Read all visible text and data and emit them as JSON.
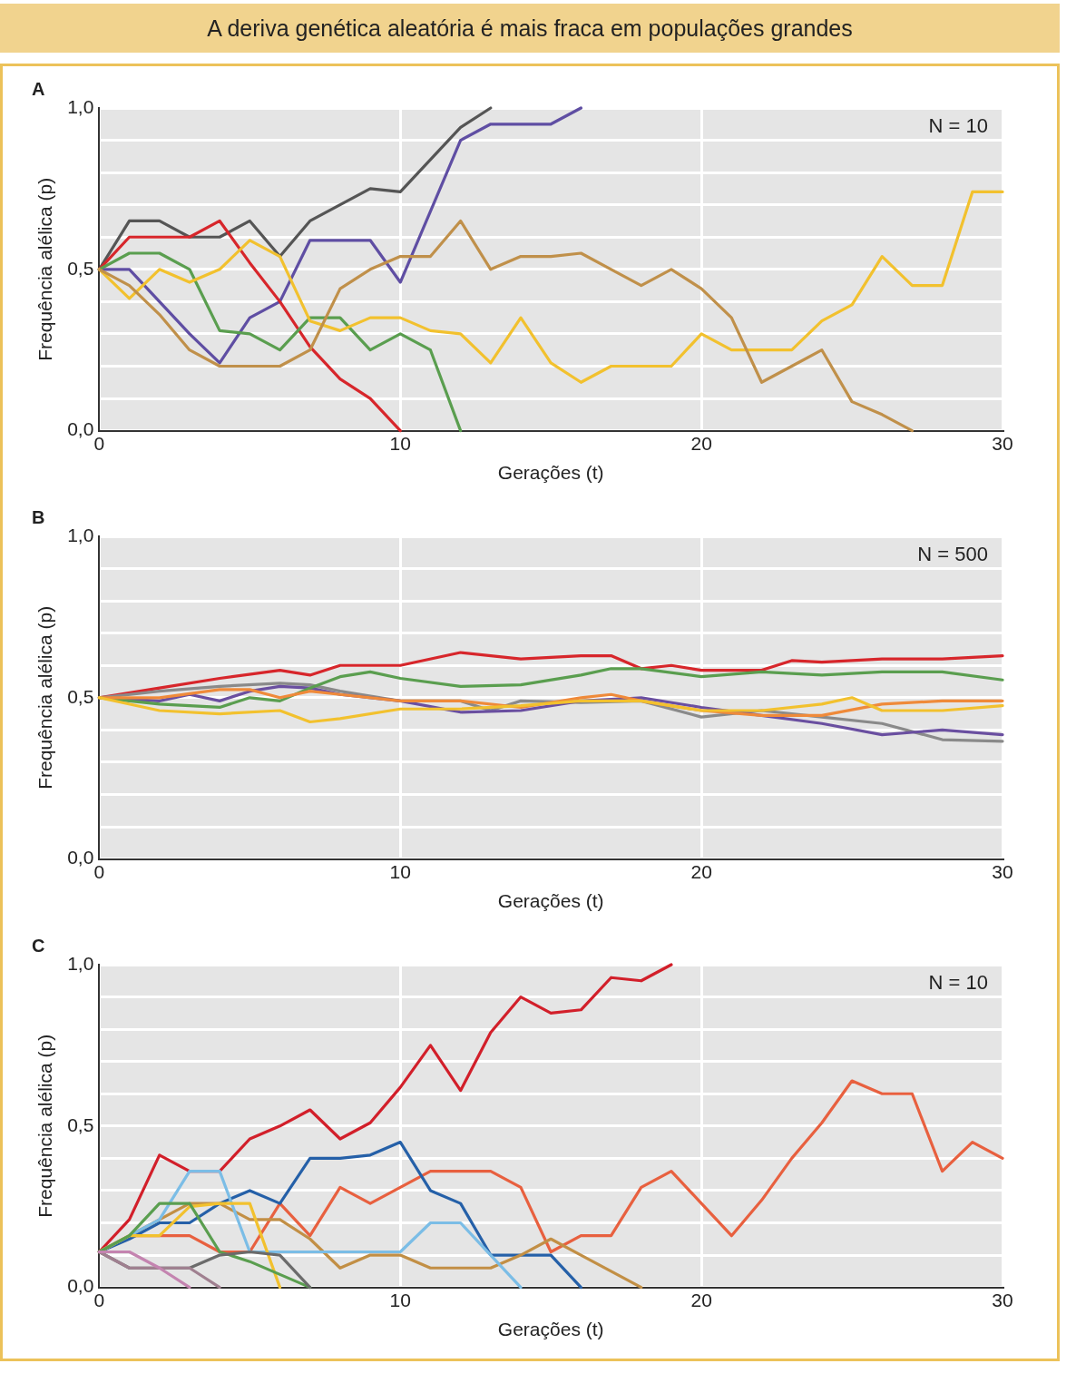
{
  "chart_data": [
    {
      "type": "line",
      "title": "A deriva genética aleatória é mais fraca em populações grandes",
      "subtitle": "A",
      "xlabel": "Gerações (t)",
      "ylabel": "Frequência alélica (p)",
      "annotations": [
        "N = 10"
      ],
      "grid": true,
      "marker": "none",
      "line_style": "solid",
      "xlim": [
        0,
        30
      ],
      "xticks": [
        0,
        10,
        20,
        30
      ],
      "ylim": [
        0,
        1
      ],
      "yticks": [
        {
          "value": 0,
          "label": "0,0"
        },
        {
          "value": 0.1,
          "label": null
        },
        {
          "value": 0.2,
          "label": null
        },
        {
          "value": 0.3,
          "label": null
        },
        {
          "value": 0.4,
          "label": null
        },
        {
          "value": 0.5,
          "label": "0,5"
        },
        {
          "value": 0.6,
          "label": null
        },
        {
          "value": 0.7,
          "label": null
        },
        {
          "value": 0.8,
          "label": null
        },
        {
          "value": 0.9,
          "label": null
        },
        {
          "value": 1,
          "label": "1,0"
        }
      ],
      "series": [
        {
          "color": "#c0904a",
          "x": [
            0,
            1,
            2,
            3,
            4,
            5,
            6,
            7,
            8,
            9,
            10,
            11,
            12,
            13,
            14,
            15,
            16,
            17,
            18,
            19,
            20,
            21,
            22,
            23,
            24,
            25,
            26,
            27
          ],
          "values": [
            0.5,
            0.45,
            0.36,
            0.25,
            0.2,
            0.2,
            0.2,
            0.25,
            0.44,
            0.5,
            0.54,
            0.54,
            0.65,
            0.5,
            0.54,
            0.54,
            0.55,
            0.5,
            0.45,
            0.5,
            0.44,
            0.35,
            0.15,
            0.2,
            0.25,
            0.09,
            0.05,
            0.0
          ]
        },
        {
          "color": "#f2c12e",
          "x": [
            0,
            1,
            2,
            3,
            4,
            5,
            6,
            7,
            8,
            9,
            10,
            11,
            12,
            13,
            14,
            15,
            16,
            17,
            18,
            19,
            20,
            21,
            22,
            23,
            24,
            25,
            26,
            27,
            28,
            29,
            30
          ],
          "values": [
            0.5,
            0.41,
            0.5,
            0.46,
            0.5,
            0.59,
            0.54,
            0.34,
            0.31,
            0.35,
            0.35,
            0.31,
            0.3,
            0.21,
            0.35,
            0.21,
            0.15,
            0.2,
            0.2,
            0.2,
            0.3,
            0.25,
            0.25,
            0.25,
            0.34,
            0.39,
            0.54,
            0.45,
            0.45,
            0.74,
            0.74
          ]
        },
        {
          "color": "#5a9e4f",
          "x": [
            0,
            1,
            2,
            3,
            4,
            5,
            6,
            7,
            8,
            9,
            10,
            11,
            12
          ],
          "values": [
            0.5,
            0.55,
            0.55,
            0.5,
            0.31,
            0.3,
            0.25,
            0.35,
            0.35,
            0.25,
            0.3,
            0.25,
            0.0
          ]
        },
        {
          "color": "#d7262b",
          "x": [
            0,
            1,
            2,
            3,
            4,
            5,
            6,
            7,
            8,
            9,
            10
          ],
          "values": [
            0.5,
            0.6,
            0.6,
            0.6,
            0.65,
            0.52,
            0.4,
            0.26,
            0.16,
            0.1,
            0.0
          ]
        },
        {
          "color": "#5f4ea3",
          "x": [
            0,
            1,
            2,
            3,
            4,
            5,
            6,
            7,
            8,
            9,
            10,
            11,
            12,
            13,
            14,
            15,
            16
          ],
          "values": [
            0.5,
            0.5,
            0.4,
            0.3,
            0.21,
            0.35,
            0.4,
            0.59,
            0.59,
            0.59,
            0.46,
            0.68,
            0.9,
            0.95,
            0.95,
            0.95,
            1.0
          ]
        },
        {
          "color": "#555555",
          "x": [
            0,
            1,
            2,
            3,
            4,
            5,
            6,
            7,
            8,
            9,
            10,
            11,
            12,
            13
          ],
          "values": [
            0.5,
            0.65,
            0.65,
            0.6,
            0.6,
            0.65,
            0.54,
            0.65,
            0.7,
            0.75,
            0.74,
            0.84,
            0.94,
            1.0
          ]
        }
      ]
    },
    {
      "type": "line",
      "subtitle": "B",
      "xlabel": "Gerações (t)",
      "ylabel": "Frequência alélica (p)",
      "annotations": [
        "N = 500"
      ],
      "grid": true,
      "marker": "none",
      "line_style": "solid",
      "xlim": [
        0,
        30
      ],
      "xticks": [
        0,
        10,
        20,
        30
      ],
      "ylim": [
        0,
        1
      ],
      "yticks": [
        {
          "value": 0,
          "label": "0,0"
        },
        {
          "value": 0.1,
          "label": null
        },
        {
          "value": 0.2,
          "label": null
        },
        {
          "value": 0.3,
          "label": null
        },
        {
          "value": 0.4,
          "label": null
        },
        {
          "value": 0.5,
          "label": "0,5"
        },
        {
          "value": 0.6,
          "label": null
        },
        {
          "value": 0.7,
          "label": null
        },
        {
          "value": 0.8,
          "label": null
        },
        {
          "value": 0.9,
          "label": null
        },
        {
          "value": 1,
          "label": "1,0"
        }
      ],
      "series": [
        {
          "color": "#f2c12e",
          "x": [
            0,
            2,
            4,
            6,
            7,
            8,
            10,
            12,
            14,
            16,
            18,
            20,
            22,
            24,
            25,
            26,
            28,
            30
          ],
          "values": [
            0.5,
            0.46,
            0.45,
            0.46,
            0.425,
            0.435,
            0.465,
            0.465,
            0.475,
            0.49,
            0.49,
            0.46,
            0.46,
            0.48,
            0.5,
            0.46,
            0.46,
            0.475
          ]
        },
        {
          "color": "#ef8a3a",
          "x": [
            0,
            2,
            4,
            5,
            6,
            7,
            8,
            10,
            12,
            14,
            16,
            17,
            18,
            20,
            22,
            24,
            26,
            28,
            30
          ],
          "values": [
            0.5,
            0.5,
            0.525,
            0.525,
            0.5,
            0.52,
            0.51,
            0.49,
            0.49,
            0.47,
            0.5,
            0.51,
            0.49,
            0.46,
            0.445,
            0.445,
            0.48,
            0.49,
            0.49
          ]
        },
        {
          "color": "#5a9e4f",
          "x": [
            0,
            2,
            4,
            5,
            6,
            7,
            8,
            9,
            10,
            12,
            14,
            16,
            17,
            18,
            20,
            22,
            24,
            26,
            28,
            30
          ],
          "values": [
            0.5,
            0.48,
            0.47,
            0.5,
            0.49,
            0.53,
            0.565,
            0.58,
            0.56,
            0.535,
            0.54,
            0.57,
            0.59,
            0.59,
            0.565,
            0.58,
            0.57,
            0.58,
            0.58,
            0.555
          ]
        },
        {
          "color": "#6a4fa0",
          "x": [
            0,
            2,
            3,
            4,
            5,
            6,
            7,
            8,
            10,
            12,
            14,
            16,
            18,
            20,
            22,
            24,
            26,
            28,
            30
          ],
          "values": [
            0.5,
            0.49,
            0.51,
            0.49,
            0.52,
            0.535,
            0.53,
            0.51,
            0.49,
            0.455,
            0.46,
            0.49,
            0.5,
            0.47,
            0.445,
            0.42,
            0.385,
            0.4,
            0.385
          ]
        },
        {
          "color": "#8a8a8a",
          "x": [
            0,
            2,
            4,
            6,
            7,
            8,
            10,
            12,
            13,
            14,
            16,
            18,
            20,
            22,
            24,
            26,
            28,
            30
          ],
          "values": [
            0.5,
            0.52,
            0.535,
            0.545,
            0.54,
            0.52,
            0.49,
            0.49,
            0.46,
            0.49,
            0.485,
            0.49,
            0.44,
            0.46,
            0.44,
            0.42,
            0.37,
            0.365
          ]
        },
        {
          "color": "#d7262b",
          "x": [
            0,
            2,
            4,
            6,
            7,
            8,
            10,
            12,
            14,
            16,
            17,
            18,
            19,
            20,
            22,
            23,
            24,
            26,
            28,
            30
          ],
          "values": [
            0.5,
            0.53,
            0.56,
            0.585,
            0.57,
            0.6,
            0.6,
            0.64,
            0.62,
            0.63,
            0.63,
            0.59,
            0.6,
            0.585,
            0.585,
            0.615,
            0.61,
            0.62,
            0.62,
            0.63
          ]
        }
      ]
    },
    {
      "type": "line",
      "subtitle": "C",
      "xlabel": "Gerações (t)",
      "ylabel": "Frequência alélica (p)",
      "annotations": [
        "N = 10"
      ],
      "grid": true,
      "marker": "none",
      "line_style": "solid",
      "xlim": [
        0,
        30
      ],
      "xticks": [
        0,
        10,
        20,
        30
      ],
      "ylim": [
        0,
        1
      ],
      "yticks": [
        {
          "value": 0,
          "label": "0,0"
        },
        {
          "value": 0.1,
          "label": null
        },
        {
          "value": 0.2,
          "label": null
        },
        {
          "value": 0.3,
          "label": null
        },
        {
          "value": 0.4,
          "label": null
        },
        {
          "value": 0.5,
          "label": "0,5"
        },
        {
          "value": 0.6,
          "label": null
        },
        {
          "value": 0.7,
          "label": null
        },
        {
          "value": 0.8,
          "label": null
        },
        {
          "value": 0.9,
          "label": null
        },
        {
          "value": 1,
          "label": "1,0"
        }
      ],
      "series": [
        {
          "color": "#c484b0",
          "x": [
            0,
            1,
            2,
            3
          ],
          "values": [
            0.11,
            0.11,
            0.06,
            0.0
          ]
        },
        {
          "color": "#a08090",
          "x": [
            0,
            1,
            2,
            3,
            4
          ],
          "values": [
            0.11,
            0.06,
            0.06,
            0.06,
            0.0
          ]
        },
        {
          "color": "#6b6b6b",
          "x": [
            0,
            1,
            2,
            3,
            4,
            5,
            6,
            7
          ],
          "values": [
            0.11,
            0.06,
            0.06,
            0.06,
            0.1,
            0.11,
            0.1,
            0.0
          ]
        },
        {
          "color": "#5a9e4f",
          "x": [
            0,
            1,
            2,
            3,
            4,
            5,
            6,
            7
          ],
          "values": [
            0.11,
            0.16,
            0.26,
            0.26,
            0.11,
            0.08,
            0.04,
            0.0
          ]
        },
        {
          "color": "#f2c12e",
          "x": [
            0,
            1,
            2,
            3,
            4,
            5,
            6
          ],
          "values": [
            0.11,
            0.16,
            0.16,
            0.25,
            0.26,
            0.26,
            0.0
          ]
        },
        {
          "color": "#7bbde6",
          "x": [
            0,
            1,
            2,
            3,
            4,
            5,
            6,
            7,
            8,
            9,
            10,
            11,
            12,
            13,
            14
          ],
          "values": [
            0.11,
            0.16,
            0.21,
            0.36,
            0.36,
            0.11,
            0.11,
            0.11,
            0.11,
            0.11,
            0.11,
            0.2,
            0.2,
            0.1,
            0.0
          ]
        },
        {
          "color": "#c28f45",
          "x": [
            0,
            1,
            2,
            3,
            4,
            5,
            6,
            7,
            8,
            9,
            10,
            11,
            12,
            13,
            14,
            15,
            16,
            17,
            18
          ],
          "values": [
            0.11,
            0.16,
            0.21,
            0.26,
            0.26,
            0.21,
            0.21,
            0.15,
            0.06,
            0.1,
            0.1,
            0.06,
            0.06,
            0.06,
            0.1,
            0.15,
            0.1,
            0.05,
            0.0
          ]
        },
        {
          "color": "#2560a8",
          "x": [
            0,
            1,
            2,
            3,
            4,
            5,
            6,
            7,
            8,
            9,
            10,
            11,
            12,
            13,
            14,
            15,
            16
          ],
          "values": [
            0.11,
            0.15,
            0.2,
            0.2,
            0.26,
            0.3,
            0.26,
            0.4,
            0.4,
            0.41,
            0.45,
            0.3,
            0.26,
            0.1,
            0.1,
            0.1,
            0.0
          ]
        },
        {
          "color": "#e8603f",
          "x": [
            0,
            1,
            2,
            3,
            4,
            5,
            6,
            7,
            8,
            9,
            10,
            11,
            12,
            13,
            14,
            15,
            16,
            17,
            18,
            19,
            20,
            21,
            22,
            23,
            24,
            25,
            26,
            27,
            28,
            29,
            30
          ],
          "values": [
            0.11,
            0.16,
            0.16,
            0.16,
            0.11,
            0.11,
            0.26,
            0.16,
            0.31,
            0.26,
            0.31,
            0.36,
            0.36,
            0.36,
            0.31,
            0.11,
            0.16,
            0.16,
            0.31,
            0.36,
            0.26,
            0.16,
            0.27,
            0.4,
            0.51,
            0.64,
            0.6,
            0.6,
            0.36,
            0.45,
            0.4
          ]
        },
        {
          "color": "#d21f2a",
          "x": [
            0,
            1,
            2,
            3,
            4,
            5,
            6,
            7,
            8,
            9,
            10,
            11,
            12,
            13,
            14,
            15,
            16,
            17,
            18,
            19
          ],
          "values": [
            0.11,
            0.21,
            0.41,
            0.36,
            0.36,
            0.46,
            0.5,
            0.55,
            0.46,
            0.51,
            0.62,
            0.75,
            0.61,
            0.79,
            0.9,
            0.85,
            0.86,
            0.96,
            0.95,
            1.0
          ]
        }
      ]
    }
  ]
}
